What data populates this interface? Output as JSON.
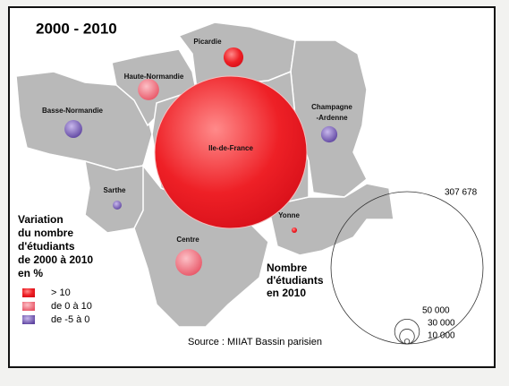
{
  "title": "2000 - 2010",
  "regions": [
    {
      "label": [
        "Picardie"
      ],
      "students": 40000,
      "color": "#e8252a"
    },
    {
      "label": [
        "Haute-Normandie"
      ],
      "students": 43000,
      "color": "#ee6a78"
    },
    {
      "label": [
        "Basse-Normandie"
      ],
      "students": 36000,
      "color": "#7a5cb8"
    },
    {
      "label": [
        "Ile-de-France"
      ],
      "students": 307678,
      "color": "#e8252a"
    },
    {
      "label": [
        "Champagne",
        "-Ardenne"
      ],
      "students": 33000,
      "color": "#7a5cb8"
    },
    {
      "label": [
        "Sarthe"
      ],
      "students": 18000,
      "color": "#7a5cb8"
    },
    {
      "label": [
        "Centre"
      ],
      "students": 54000,
      "color": "#ee6a78"
    },
    {
      "label": [
        "Yonne"
      ],
      "students": 11000,
      "color": "#e8252a"
    }
  ],
  "variation_legend": {
    "title": [
      "Variation",
      "du nombre",
      "d'étudiants",
      "de 2000 à 2010",
      "en %"
    ],
    "items": [
      {
        "label": "> 10",
        "color": "#e8252a"
      },
      {
        "label": "de 0 à 10",
        "color": "#ee6a78"
      },
      {
        "label": "de -5 à 0",
        "color": "#7a5cb8"
      }
    ]
  },
  "size_legend": {
    "title": [
      "Nombre",
      "d'étudiants",
      "en 2010"
    ],
    "circles": [
      {
        "value": 307678,
        "label": "307 678"
      },
      {
        "value": 50000,
        "label": "50 000"
      },
      {
        "value": 30000,
        "label": "30 000"
      },
      {
        "value": 10000,
        "label": "10 000"
      }
    ]
  },
  "source": "Source :  MIIAT Bassin parisien"
}
